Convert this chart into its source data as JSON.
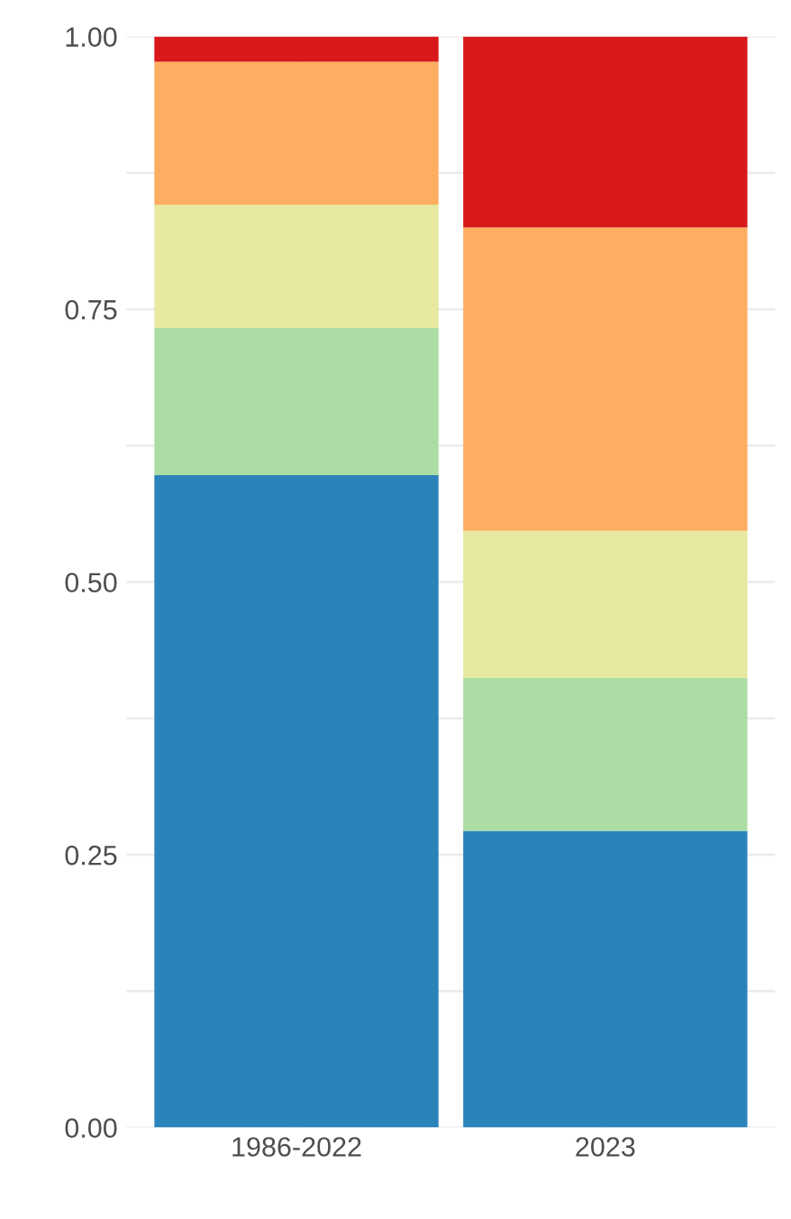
{
  "chart_data": {
    "type": "bar",
    "stacked": true,
    "categories": [
      "1986-2022",
      "2023"
    ],
    "series": [
      {
        "color": "#2b83ba",
        "values": [
          0.598,
          0.272
        ]
      },
      {
        "color": "#abdda4",
        "values": [
          0.135,
          0.14
        ]
      },
      {
        "color": "#e6e99f",
        "values": [
          0.113,
          0.135
        ]
      },
      {
        "color": "#fdae61",
        "values": [
          0.131,
          0.278
        ]
      },
      {
        "color": "#d7191c",
        "values": [
          0.023,
          0.175
        ]
      }
    ],
    "ylim": [
      0,
      1.0
    ],
    "yticks": [
      {
        "value": 0,
        "label": "0.00"
      },
      {
        "value": 0.125,
        "label": null
      },
      {
        "value": 0.25,
        "label": "0.25"
      },
      {
        "value": 0.375,
        "label": null
      },
      {
        "value": 0.5,
        "label": "0.50"
      },
      {
        "value": 0.625,
        "label": null
      },
      {
        "value": 0.75,
        "label": "0.75"
      },
      {
        "value": 0.875,
        "label": null
      },
      {
        "value": 1.0,
        "label": "1.00"
      }
    ],
    "grid": true
  }
}
